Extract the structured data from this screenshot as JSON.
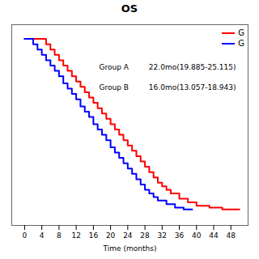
{
  "chart_data": {
    "type": "step",
    "title": "OS",
    "xlabel": "Time (months)",
    "xlim": [
      -3,
      52
    ],
    "xticks": [
      0,
      4,
      8,
      12,
      16,
      20,
      24,
      28,
      32,
      36,
      40,
      44,
      48
    ],
    "ylim": [
      -0.05,
      1.08
    ],
    "yticks": [],
    "tick_labels": "x",
    "legend": "upper right",
    "series": [
      {
        "name": "G",
        "color": "#FF0000",
        "x": [
          0,
          4,
          5,
          6,
          7,
          8,
          9,
          10,
          11,
          12,
          13,
          14,
          15,
          16,
          17,
          18,
          19,
          20,
          21,
          22,
          23,
          24,
          25,
          26,
          27,
          28,
          29,
          30,
          31,
          32,
          33,
          34,
          36,
          38,
          40,
          43,
          46,
          50
        ],
        "values": [
          1.0,
          1.0,
          0.97,
          0.94,
          0.91,
          0.88,
          0.85,
          0.82,
          0.79,
          0.76,
          0.73,
          0.7,
          0.67,
          0.64,
          0.61,
          0.58,
          0.55,
          0.52,
          0.49,
          0.46,
          0.43,
          0.4,
          0.37,
          0.34,
          0.31,
          0.28,
          0.25,
          0.22,
          0.19,
          0.17,
          0.15,
          0.13,
          0.1,
          0.08,
          0.06,
          0.05,
          0.04,
          0.04
        ]
      },
      {
        "name": "G",
        "color": "#0000FF",
        "x": [
          0,
          2,
          3,
          4,
          5,
          6,
          7,
          8,
          9,
          10,
          11,
          12,
          13,
          14,
          15,
          16,
          17,
          18,
          19,
          20,
          21,
          22,
          23,
          24,
          25,
          26,
          27,
          28,
          29,
          30,
          31,
          33,
          35,
          37,
          39
        ],
        "values": [
          1.0,
          0.97,
          0.94,
          0.91,
          0.88,
          0.85,
          0.82,
          0.79,
          0.75,
          0.72,
          0.69,
          0.66,
          0.62,
          0.59,
          0.56,
          0.52,
          0.49,
          0.46,
          0.43,
          0.39,
          0.36,
          0.33,
          0.3,
          0.27,
          0.24,
          0.21,
          0.18,
          0.15,
          0.13,
          0.11,
          0.09,
          0.07,
          0.05,
          0.04,
          0.04
        ]
      }
    ],
    "annotations": [
      "Group A",
      "Group B",
      "22.0mo(19.885-25.115)",
      "16.0mo(13.057-18.943)"
    ]
  }
}
